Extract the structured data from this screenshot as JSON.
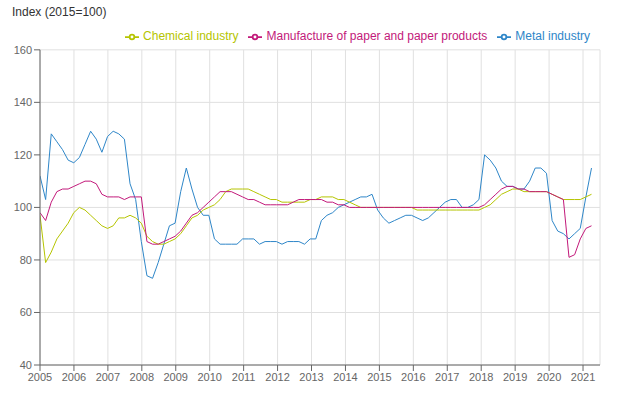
{
  "chart_data": {
    "type": "line",
    "ylabel": "Index (2015=100)",
    "x": [
      2005,
      2005.165816,
      2005.331633,
      2005.497449,
      2005.663265,
      2005.829082,
      2005.994898,
      2006.160714,
      2006.326531,
      2006.492347,
      2006.658163,
      2006.82398,
      2006.989796,
      2007.155612,
      2007.321429,
      2007.487245,
      2007.653061,
      2007.818878,
      2007.984694,
      2008.15051,
      2008.316327,
      2008.482143,
      2008.647959,
      2008.813776,
      2008.979592,
      2009.145408,
      2009.311224,
      2009.477041,
      2009.642857,
      2009.808673,
      2009.97449,
      2010.140306,
      2010.306122,
      2010.471939,
      2010.637755,
      2010.803571,
      2010.969388,
      2011.135204,
      2011.30102,
      2011.466837,
      2011.632653,
      2011.798469,
      2011.964286,
      2012.130102,
      2012.295918,
      2012.461735,
      2012.627551,
      2012.793367,
      2012.959184,
      2013.125,
      2013.290816,
      2013.456633,
      2013.622449,
      2013.788265,
      2013.954082,
      2014.119898,
      2014.285714,
      2014.451531,
      2014.617347,
      2014.783163,
      2014.94898,
      2015.114796,
      2015.280612,
      2015.446429,
      2015.612245,
      2015.778061,
      2015.943878,
      2016.109694,
      2016.27551,
      2016.441327,
      2016.607143,
      2016.772959,
      2016.938776,
      2017.104592,
      2017.270408,
      2017.436224,
      2017.602041,
      2017.767857,
      2017.933673,
      2018.09949,
      2018.265306,
      2018.431122,
      2018.596939,
      2018.762755,
      2018.928571,
      2019.094388,
      2019.260204,
      2019.42602,
      2019.591837,
      2019.757653,
      2019.923469,
      2020.089286,
      2020.255102,
      2020.420918,
      2020.586735,
      2020.752551,
      2020.918367,
      2021.084184,
      2021.25
    ],
    "series": [
      {
        "name": "Metal industry",
        "color": "#2e86c8",
        "values": [
          112,
          103,
          128,
          125,
          122,
          118,
          117,
          119,
          124,
          129,
          126,
          121,
          127,
          129,
          128,
          126,
          109,
          103,
          87,
          74,
          73,
          79,
          86,
          93,
          94,
          106,
          115,
          107,
          100,
          97,
          97,
          88,
          86,
          86,
          86,
          86,
          88,
          88,
          88,
          86,
          87,
          87,
          87,
          86,
          87,
          87,
          87,
          86,
          88,
          88,
          95,
          97,
          98,
          100,
          101,
          102,
          103,
          104,
          104,
          105,
          99,
          96,
          94,
          95,
          96,
          97,
          97,
          96,
          95,
          96,
          98,
          100,
          102,
          103,
          103,
          100,
          100,
          101,
          103,
          120,
          118,
          115,
          110,
          108,
          108,
          107,
          107,
          110,
          115,
          115,
          113,
          95,
          91,
          90,
          88,
          90,
          92,
          104,
          115
        ]
      },
      {
        "name": "Chemical industry",
        "color": "#b5c400",
        "values": [
          97,
          79,
          83,
          88,
          91,
          94,
          98,
          100,
          99,
          97,
          95,
          93,
          92,
          93,
          96,
          96,
          97,
          96,
          94,
          89,
          87,
          86,
          86,
          87,
          88,
          90,
          93,
          96,
          97,
          99,
          100,
          101,
          103,
          106,
          107,
          107,
          107,
          107,
          106,
          105,
          104,
          103,
          103,
          102,
          102,
          102,
          102,
          102,
          103,
          103,
          104,
          104,
          104,
          103,
          103,
          102,
          101,
          100,
          100,
          100,
          100,
          100,
          100,
          100,
          100,
          100,
          100,
          99,
          99,
          99,
          99,
          99,
          99,
          99,
          99,
          99,
          99,
          99,
          99,
          100,
          101,
          103,
          105,
          106,
          107,
          107,
          106,
          106,
          106,
          106,
          106,
          105,
          104,
          103,
          103,
          103,
          103,
          104,
          105
        ]
      },
      {
        "name": "Manufacture of paper and paper products",
        "color": "#c2197a",
        "values": [
          98,
          95,
          102,
          106,
          107,
          107,
          108,
          109,
          110,
          110,
          109,
          105,
          104,
          104,
          104,
          103,
          104,
          104,
          104,
          87,
          86,
          86,
          87,
          88,
          89,
          91,
          94,
          97,
          98,
          100,
          102,
          104,
          106,
          106,
          106,
          105,
          104,
          103,
          103,
          102,
          101,
          101,
          101,
          101,
          101,
          102,
          103,
          103,
          103,
          103,
          103,
          102,
          102,
          101,
          101,
          100,
          100,
          100,
          100,
          100,
          100,
          100,
          100,
          100,
          100,
          100,
          100,
          100,
          100,
          100,
          100,
          100,
          100,
          100,
          100,
          100,
          100,
          100,
          100,
          101,
          103,
          105,
          107,
          108,
          108,
          107,
          107,
          106,
          106,
          106,
          106,
          105,
          104,
          103,
          81,
          82,
          88,
          92,
          93
        ]
      }
    ],
    "xlim": [
      2005.0,
      2021.5
    ],
    "xticks": [
      2005,
      2006,
      2007,
      2008,
      2009,
      2010,
      2011,
      2012,
      2013,
      2014,
      2015,
      2016,
      2017,
      2018,
      2019,
      2020,
      2021
    ],
    "ylim": [
      40,
      160
    ],
    "yticks": [
      40,
      60,
      80,
      100,
      120,
      140,
      160
    ],
    "grid": true,
    "legend": "upper right"
  }
}
